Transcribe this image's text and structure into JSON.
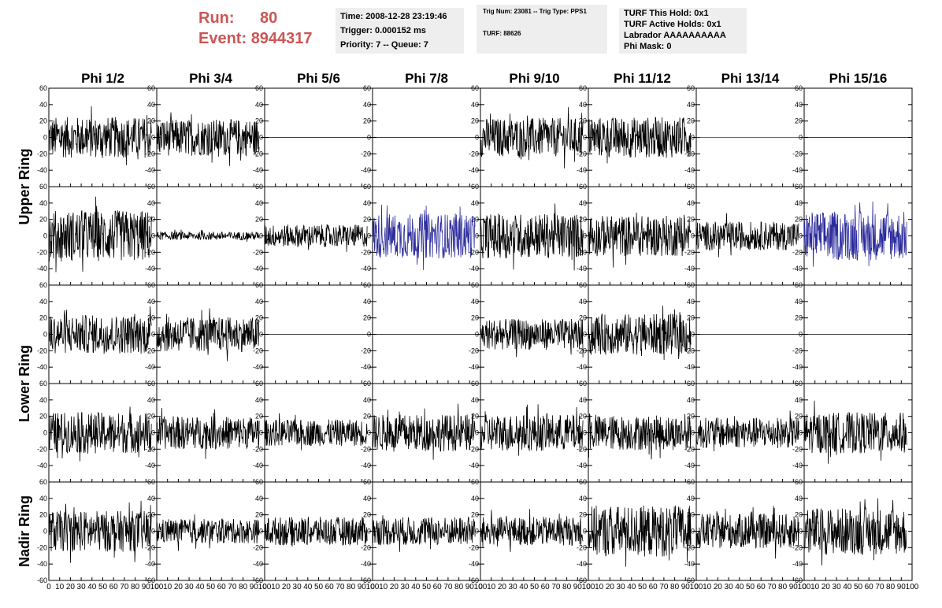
{
  "header": {
    "run_label": "Run:",
    "run_value": "80",
    "event_label": "Event:",
    "event_value": "8944317",
    "time": "Time: 2008-12-28 23:19:46",
    "trigger": "Trigger: 0.000152 ms",
    "priority": "Priority: 7 -- Queue: 7",
    "trig_num": "Trig Num: 23081 -- Trig Type: PPS1",
    "turf": "TURF: 88626",
    "turf_this_hold": "TURF This Hold: 0x1",
    "turf_active_holds": "TURF Active Holds: 0x1",
    "labrador": "Labrador AAAAAAAAAA",
    "phi_mask": "Phi Mask: 0"
  },
  "chart_data": {
    "type": "line",
    "columns": [
      "Phi 1/2",
      "Phi 3/4",
      "Phi 5/6",
      "Phi 7/8",
      "Phi 9/10",
      "Phi 11/12",
      "Phi 13/14",
      "Phi 15/16"
    ],
    "ring_labels": [
      "Upper Ring",
      "Lower Ring",
      "Nadir Ring"
    ],
    "xlim": [
      0,
      100
    ],
    "ylim": [
      -60,
      60
    ],
    "x_ticks": [
      0,
      10,
      20,
      30,
      40,
      50,
      60,
      70,
      80,
      90,
      100
    ],
    "y_ticks": [
      -60,
      -40,
      -20,
      0,
      20,
      40,
      60
    ],
    "y_tick_labels": [
      "-60",
      "-40",
      "-20",
      "0",
      "20",
      "40",
      "60"
    ],
    "x_tick_text": [
      "0",
      "10",
      "20",
      "30",
      "40",
      "50",
      "60",
      "70",
      "80",
      "90",
      "100"
    ],
    "colors": {
      "trace": "#000000",
      "highlight": "#2b2b9b"
    },
    "panels": [
      [
        {
          "amp": 20,
          "c": "trace"
        },
        {
          "amp": 18,
          "c": "trace"
        },
        {
          "amp": 0,
          "c": "trace"
        },
        {
          "amp": 0,
          "c": "trace"
        },
        {
          "amp": 19,
          "c": "trace"
        },
        {
          "amp": 20,
          "c": "trace"
        },
        {
          "amp": 0,
          "c": "highlight"
        },
        {
          "amp": 0,
          "c": "trace"
        }
      ],
      [
        {
          "amp": 25,
          "c": "trace"
        },
        {
          "amp": 4,
          "c": "trace"
        },
        {
          "amp": 11,
          "c": "trace"
        },
        {
          "amp": 22,
          "c": "highlight"
        },
        {
          "amp": 22,
          "c": "trace"
        },
        {
          "amp": 20,
          "c": "trace"
        },
        {
          "amp": 14,
          "c": "trace"
        },
        {
          "amp": 24,
          "c": "highlight"
        }
      ],
      [
        {
          "amp": 19,
          "c": "trace"
        },
        {
          "amp": 17,
          "c": "trace"
        },
        {
          "amp": 0,
          "c": "trace"
        },
        {
          "amp": 0,
          "c": "trace"
        },
        {
          "amp": 15,
          "c": "trace"
        },
        {
          "amp": 20,
          "c": "trace"
        },
        {
          "amp": 0,
          "c": "trace"
        },
        {
          "amp": 0,
          "c": "trace"
        }
      ],
      [
        {
          "amp": 20,
          "c": "trace"
        },
        {
          "amp": 16,
          "c": "trace"
        },
        {
          "amp": 13,
          "c": "trace"
        },
        {
          "amp": 18,
          "c": "trace"
        },
        {
          "amp": 18,
          "c": "trace"
        },
        {
          "amp": 17,
          "c": "trace"
        },
        {
          "amp": 15,
          "c": "trace"
        },
        {
          "amp": 20,
          "c": "trace"
        }
      ],
      [
        {
          "amp": 20,
          "c": "trace"
        },
        {
          "amp": 12,
          "c": "trace"
        },
        {
          "amp": 14,
          "c": "trace"
        },
        {
          "amp": 14,
          "c": "trace"
        },
        {
          "amp": 14,
          "c": "trace"
        },
        {
          "amp": 25,
          "c": "trace"
        },
        {
          "amp": 17,
          "c": "trace"
        },
        {
          "amp": 23,
          "c": "trace"
        }
      ]
    ]
  }
}
